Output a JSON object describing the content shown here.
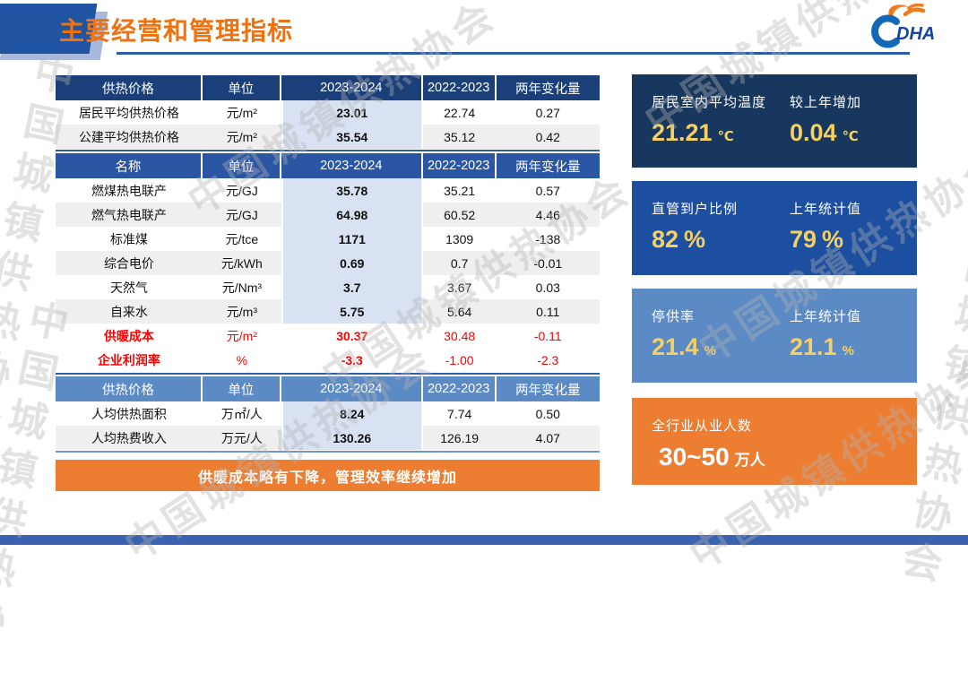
{
  "page": {
    "title": "主要经营和管理指标",
    "watermark": "中国城镇供热协会",
    "footer_note": "供暖成本略有下降，管理效率继续增加",
    "logo": {
      "text": "DHA",
      "icon": "cdha-logo"
    }
  },
  "colors": {
    "title_orange": "#F0720E",
    "table1_header": "#1B4079",
    "table2_header": "#2A56A4",
    "table3_header": "#5B8AC5",
    "highlight_column": "#D9E2F3",
    "alt_row": "#EFEFEF",
    "red_text": "#FF0000",
    "card1_bg": "#17375E",
    "card2_bg": "#1D4FA1",
    "card3_bg": "#5B8AC5",
    "card4_bg": "#ED7D31",
    "value_yellow": "#F6D063",
    "accent_blue": "#2F5DA8",
    "footer_bar_blue": "#3A62B0"
  },
  "tables": [
    {
      "headers": [
        "供热价格",
        "单位",
        "2023-2024",
        "2022-2023",
        "两年变化量"
      ],
      "rows": [
        {
          "name": "居民平均供热价格",
          "unit": "元/m²",
          "v1": "23.01",
          "v2": "22.74",
          "delta": "0.27",
          "red": false
        },
        {
          "name": "公建平均供热价格",
          "unit": "元/m²",
          "v1": "35.54",
          "v2": "35.12",
          "delta": "0.42",
          "red": false
        }
      ]
    },
    {
      "headers": [
        "名称",
        "单位",
        "2023-2024",
        "2022-2023",
        "两年变化量"
      ],
      "rows": [
        {
          "name": "燃煤热电联产",
          "unit": "元/GJ",
          "v1": "35.78",
          "v2": "35.21",
          "delta": "0.57",
          "red": false
        },
        {
          "name": "燃气热电联产",
          "unit": "元/GJ",
          "v1": "64.98",
          "v2": "60.52",
          "delta": "4.46",
          "red": false
        },
        {
          "name": "标准煤",
          "unit": "元/tce",
          "v1": "1171",
          "v2": "1309",
          "delta": "-138",
          "red": false
        },
        {
          "name": "综合电价",
          "unit": "元/kWh",
          "v1": "0.69",
          "v2": "0.7",
          "delta": "-0.01",
          "red": false
        },
        {
          "name": "天然气",
          "unit": "元/Nm³",
          "v1": "3.7",
          "v2": "3.67",
          "delta": "0.03",
          "red": false
        },
        {
          "name": "自来水",
          "unit": "元/m³",
          "v1": "5.75",
          "v2": "5.64",
          "delta": "0.11",
          "red": false
        },
        {
          "name": "供暖成本",
          "unit": "元/m²",
          "v1": "30.37",
          "v2": "30.48",
          "delta": "-0.11",
          "red": true
        },
        {
          "name": "企业利润率",
          "unit": "%",
          "v1": "-3.3",
          "v2": "-1.00",
          "delta": "-2.3",
          "red": true
        }
      ]
    },
    {
      "headers": [
        "供热价格",
        "单位",
        "2023-2024",
        "2022-2023",
        "两年变化量"
      ],
      "rows": [
        {
          "name": "人均供热面积",
          "unit": "万㎡/人",
          "v1": "8.24",
          "v2": "7.74",
          "delta": "0.50",
          "red": false
        },
        {
          "name": "人均热费收入",
          "unit": "万元/人",
          "v1": "130.26",
          "v2": "126.19",
          "delta": "4.07",
          "red": false
        }
      ]
    }
  ],
  "cards": [
    {
      "items": [
        {
          "label": "居民室内平均温度",
          "value": "21.21",
          "unit": "℃"
        },
        {
          "label": "较上年增加",
          "value": "0.04",
          "unit": "℃"
        }
      ]
    },
    {
      "items": [
        {
          "label": "直管到户比例",
          "value": "82",
          "unit": "%"
        },
        {
          "label": "上年统计值",
          "value": "79",
          "unit": "%"
        }
      ]
    },
    {
      "items": [
        {
          "label": "停供率",
          "value": "21.4",
          "unit": "%"
        },
        {
          "label": "上年统计值",
          "value": "21.1",
          "unit": "%"
        }
      ]
    },
    {
      "items": [
        {
          "label": "全行业从业人数",
          "value": "30~50",
          "unit": "万人"
        }
      ]
    }
  ]
}
